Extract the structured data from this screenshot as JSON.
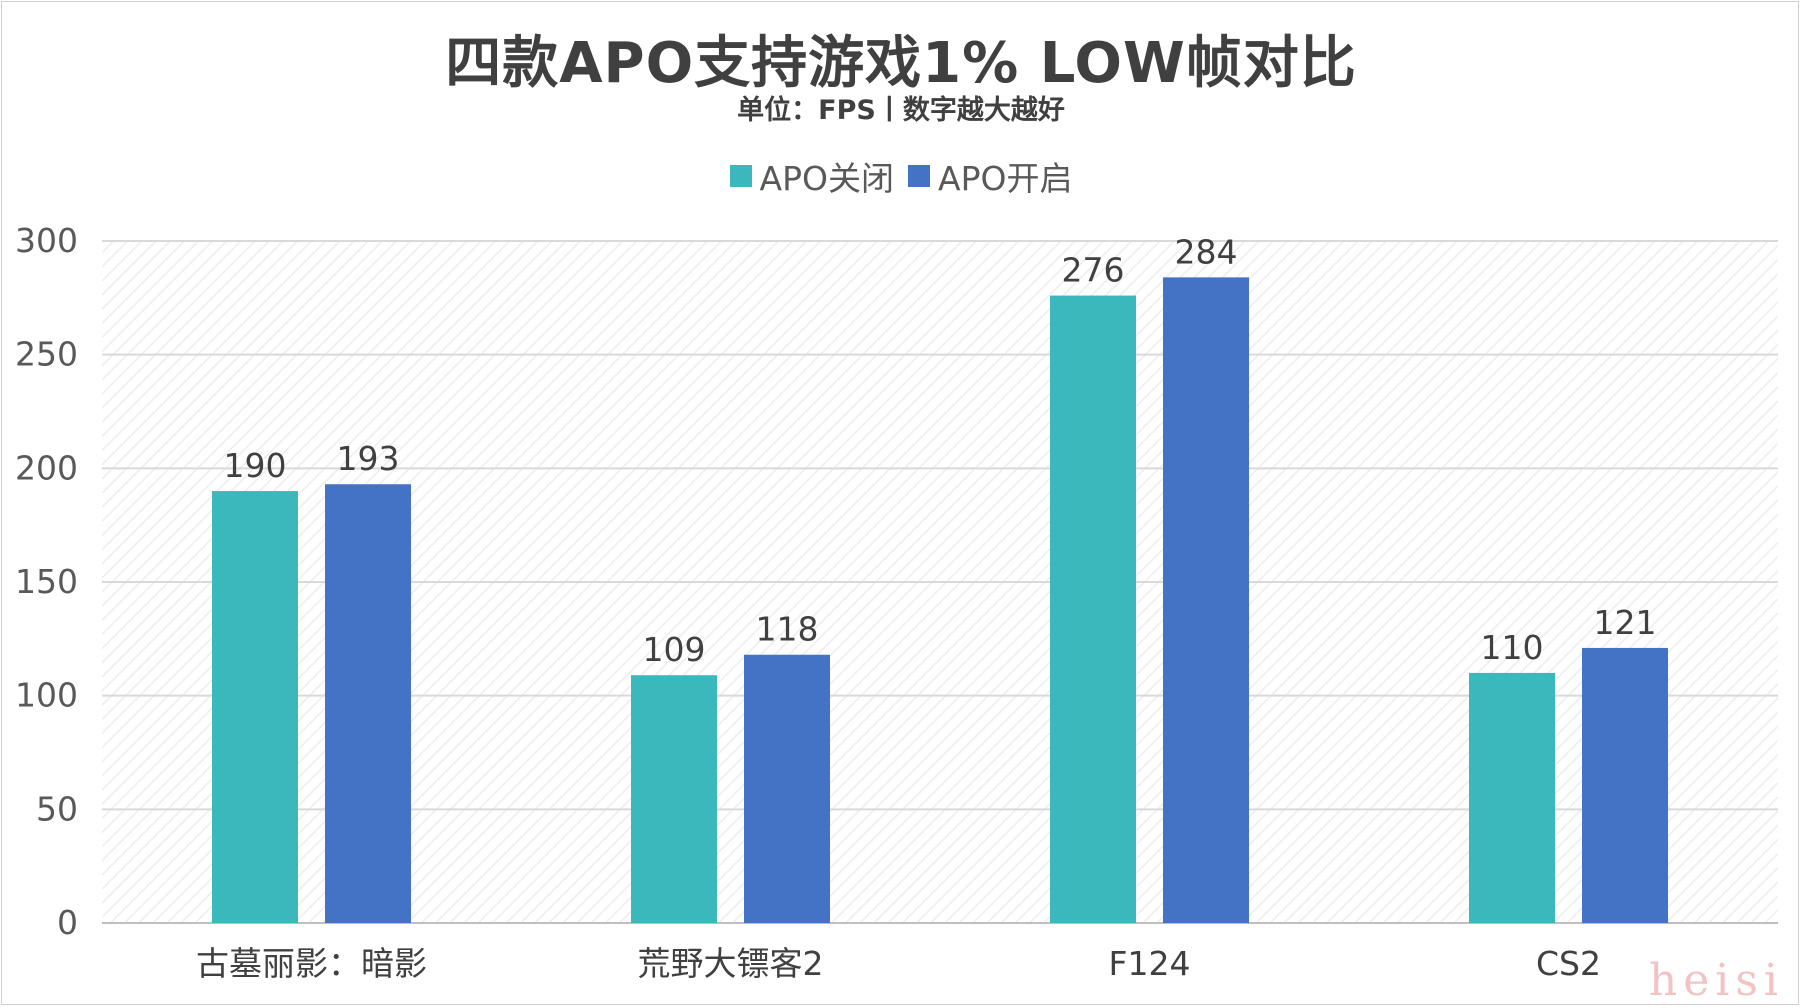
{
  "chart_data": {
    "type": "bar",
    "title": "四款APO支持游戏1% LOW帧对比",
    "subtitle": "单位：FPS丨数字越大越好",
    "categories": [
      "古墓丽影：暗影",
      "荒野大镖客2",
      "F124",
      "CS2"
    ],
    "series": [
      {
        "name": "APO关闭",
        "color": "#3bb8bb",
        "values": [
          190,
          109,
          276,
          110
        ]
      },
      {
        "name": "APO开启",
        "color": "#4472c4",
        "values": [
          193,
          118,
          284,
          121
        ]
      }
    ],
    "ylim": [
      0,
      300
    ],
    "yticks": [
      0,
      50,
      100,
      150,
      200,
      250,
      300
    ],
    "grid": true,
    "legend_position": "top",
    "data_labels": true
  },
  "watermark": "heisi"
}
